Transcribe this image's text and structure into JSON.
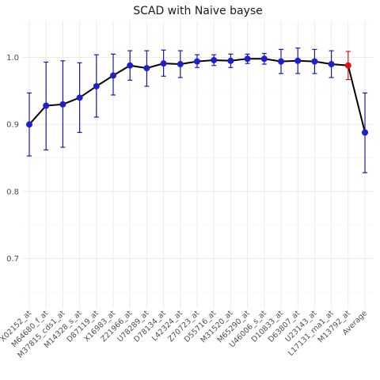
{
  "chart_data": {
    "type": "line",
    "title": "SCAD with Naive bayse",
    "xlabel": "",
    "ylabel": "",
    "ylim": [
      0.625,
      1.055
    ],
    "y_ticks": [
      0.7,
      0.8,
      0.9,
      1.0
    ],
    "y_tick_labels": [
      "0.7",
      "0.8",
      "0.9",
      "1.0"
    ],
    "grid": true,
    "legend": "none",
    "colors": {
      "point": "#1f1fd0",
      "highlight": "#e01010",
      "line": "#000000",
      "errorbar": "#1a1aa8",
      "title": "#1a1a1a"
    },
    "categories": [
      "X02152_at",
      "M64680_f_at",
      "M37815_cds1_at",
      "M14328_s_at",
      "D87119_at",
      "X16983_at",
      "Z21966_at",
      "U78289_at",
      "D78134_at",
      "L42324_at",
      "Z70723_at",
      "D55716_at",
      "M31520_at",
      "M65290_at",
      "U46006_s_at",
      "D10833_at",
      "D63807_at",
      "U23143_at",
      "L17131_rna1_at",
      "M13792_at",
      "Average"
    ],
    "values": [
      0.9,
      0.928,
      0.93,
      0.94,
      0.957,
      0.973,
      0.988,
      0.984,
      0.991,
      0.99,
      0.994,
      0.996,
      0.995,
      0.998,
      0.998,
      0.994,
      0.995,
      0.994,
      0.99,
      0.988,
      0.888
    ],
    "lower": [
      0.853,
      0.862,
      0.866,
      0.888,
      0.911,
      0.944,
      0.966,
      0.957,
      0.972,
      0.97,
      0.985,
      0.988,
      0.985,
      0.991,
      0.99,
      0.976,
      0.976,
      0.976,
      0.97,
      0.967,
      0.828
    ],
    "upper": [
      0.947,
      0.993,
      0.995,
      0.992,
      1.004,
      1.005,
      1.01,
      1.01,
      1.011,
      1.01,
      1.004,
      1.004,
      1.005,
      1.005,
      1.006,
      1.012,
      1.014,
      1.012,
      1.01,
      1.009,
      0.947
    ],
    "highlight_index": 19
  }
}
